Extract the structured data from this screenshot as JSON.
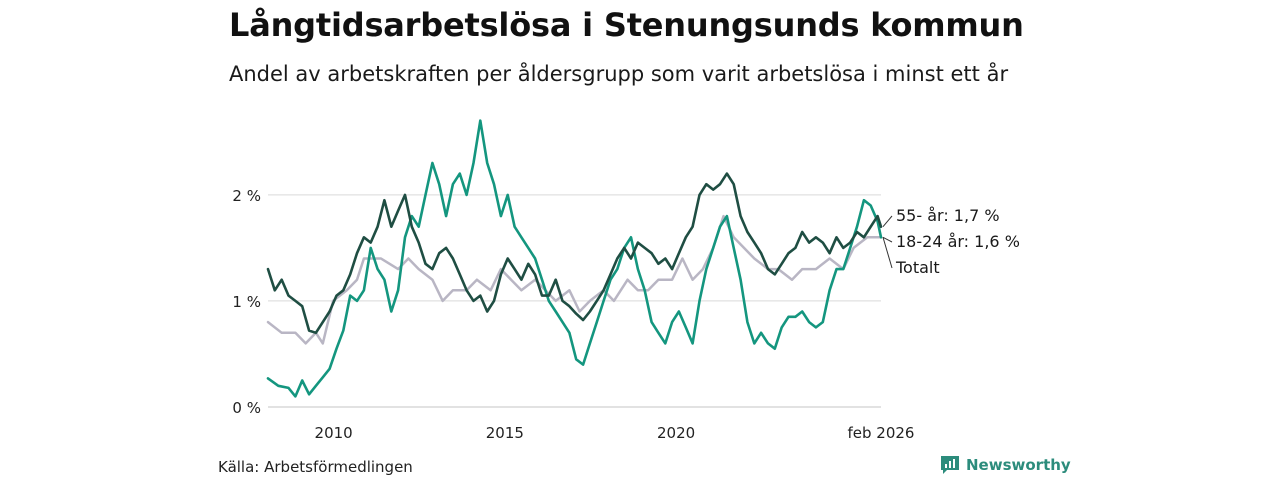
{
  "header": {
    "title": "Långtidsarbetslösa i Stenungsunds kommun",
    "subtitle": "Andel av arbetskraften per åldersgrupp som varit arbetslösa i minst ett år"
  },
  "footer": {
    "source": "Källa: Arbetsförmedlingen",
    "brand": "Newsworthy"
  },
  "colors": {
    "age_55": "#1f4e43",
    "age_18_24": "#14967f",
    "total": "#b9b6c4",
    "grid": "#d9d9d9",
    "brand": "#2c8c7c"
  },
  "chart_data": {
    "type": "line",
    "title": "Långtidsarbetslösa i Stenungsunds kommun",
    "subtitle": "Andel av arbetskraften per åldersgrupp som varit arbetslösa i minst ett år",
    "xlabel": "",
    "ylabel": "",
    "xlim": [
      2008.2,
      2026.1
    ],
    "ylim": [
      0,
      2.8
    ],
    "x_ticks": [
      {
        "value": 2010,
        "label": "2010"
      },
      {
        "value": 2015,
        "label": "2015"
      },
      {
        "value": 2020,
        "label": "2020"
      },
      {
        "value": 2026.1,
        "label": "feb 2026"
      }
    ],
    "y_ticks": [
      {
        "value": 0,
        "label": "0 %"
      },
      {
        "value": 1,
        "label": "1 %"
      },
      {
        "value": 2,
        "label": "2 %"
      }
    ],
    "grid": true,
    "series": [
      {
        "name": "Totalt",
        "key": "total",
        "end_label": "Totalt",
        "points": [
          [
            2008.2,
            0.8
          ],
          [
            2008.6,
            0.7
          ],
          [
            2009.0,
            0.7
          ],
          [
            2009.3,
            0.6
          ],
          [
            2009.6,
            0.7
          ],
          [
            2009.8,
            0.6
          ],
          [
            2010.1,
            1.0
          ],
          [
            2010.5,
            1.1
          ],
          [
            2010.8,
            1.2
          ],
          [
            2011.0,
            1.4
          ],
          [
            2011.5,
            1.4
          ],
          [
            2012.0,
            1.3
          ],
          [
            2012.3,
            1.4
          ],
          [
            2012.6,
            1.3
          ],
          [
            2013.0,
            1.2
          ],
          [
            2013.3,
            1.0
          ],
          [
            2013.6,
            1.1
          ],
          [
            2014.0,
            1.1
          ],
          [
            2014.3,
            1.2
          ],
          [
            2014.7,
            1.1
          ],
          [
            2015.0,
            1.3
          ],
          [
            2015.3,
            1.2
          ],
          [
            2015.6,
            1.1
          ],
          [
            2016.0,
            1.2
          ],
          [
            2016.3,
            1.1
          ],
          [
            2016.6,
            1.0
          ],
          [
            2017.0,
            1.1
          ],
          [
            2017.3,
            0.9
          ],
          [
            2017.6,
            1.0
          ],
          [
            2018.0,
            1.1
          ],
          [
            2018.3,
            1.0
          ],
          [
            2018.7,
            1.2
          ],
          [
            2019.0,
            1.1
          ],
          [
            2019.3,
            1.1
          ],
          [
            2019.6,
            1.2
          ],
          [
            2020.0,
            1.2
          ],
          [
            2020.3,
            1.4
          ],
          [
            2020.6,
            1.2
          ],
          [
            2020.9,
            1.3
          ],
          [
            2021.2,
            1.5
          ],
          [
            2021.5,
            1.8
          ],
          [
            2021.8,
            1.6
          ],
          [
            2022.1,
            1.5
          ],
          [
            2022.4,
            1.4
          ],
          [
            2022.8,
            1.3
          ],
          [
            2023.1,
            1.3
          ],
          [
            2023.5,
            1.2
          ],
          [
            2023.8,
            1.3
          ],
          [
            2024.2,
            1.3
          ],
          [
            2024.6,
            1.4
          ],
          [
            2025.0,
            1.3
          ],
          [
            2025.3,
            1.5
          ],
          [
            2025.7,
            1.6
          ],
          [
            2026.1,
            1.6
          ]
        ]
      },
      {
        "name": "18-24 år",
        "key": "age_18_24",
        "end_label": "18-24 år: 1,6 %",
        "points": [
          [
            2008.2,
            0.27
          ],
          [
            2008.5,
            0.2
          ],
          [
            2008.8,
            0.18
          ],
          [
            2009.0,
            0.1
          ],
          [
            2009.2,
            0.25
          ],
          [
            2009.4,
            0.12
          ],
          [
            2009.6,
            0.2
          ],
          [
            2009.8,
            0.28
          ],
          [
            2010.0,
            0.36
          ],
          [
            2010.2,
            0.55
          ],
          [
            2010.4,
            0.72
          ],
          [
            2010.6,
            1.05
          ],
          [
            2010.8,
            1.0
          ],
          [
            2011.0,
            1.1
          ],
          [
            2011.2,
            1.5
          ],
          [
            2011.4,
            1.3
          ],
          [
            2011.6,
            1.2
          ],
          [
            2011.8,
            0.9
          ],
          [
            2012.0,
            1.1
          ],
          [
            2012.2,
            1.6
          ],
          [
            2012.4,
            1.8
          ],
          [
            2012.6,
            1.7
          ],
          [
            2012.8,
            2.0
          ],
          [
            2013.0,
            2.3
          ],
          [
            2013.2,
            2.1
          ],
          [
            2013.4,
            1.8
          ],
          [
            2013.6,
            2.1
          ],
          [
            2013.8,
            2.2
          ],
          [
            2014.0,
            2.0
          ],
          [
            2014.2,
            2.3
          ],
          [
            2014.4,
            2.7
          ],
          [
            2014.6,
            2.3
          ],
          [
            2014.8,
            2.1
          ],
          [
            2015.0,
            1.8
          ],
          [
            2015.2,
            2.0
          ],
          [
            2015.4,
            1.7
          ],
          [
            2015.6,
            1.6
          ],
          [
            2015.8,
            1.5
          ],
          [
            2016.0,
            1.4
          ],
          [
            2016.2,
            1.2
          ],
          [
            2016.4,
            1.0
          ],
          [
            2016.6,
            0.9
          ],
          [
            2016.8,
            0.8
          ],
          [
            2017.0,
            0.7
          ],
          [
            2017.2,
            0.45
          ],
          [
            2017.4,
            0.4
          ],
          [
            2017.6,
            0.6
          ],
          [
            2017.8,
            0.8
          ],
          [
            2018.0,
            1.0
          ],
          [
            2018.2,
            1.2
          ],
          [
            2018.4,
            1.3
          ],
          [
            2018.6,
            1.5
          ],
          [
            2018.8,
            1.6
          ],
          [
            2019.0,
            1.3
          ],
          [
            2019.2,
            1.1
          ],
          [
            2019.4,
            0.8
          ],
          [
            2019.6,
            0.7
          ],
          [
            2019.8,
            0.6
          ],
          [
            2020.0,
            0.8
          ],
          [
            2020.2,
            0.9
          ],
          [
            2020.4,
            0.75
          ],
          [
            2020.6,
            0.6
          ],
          [
            2020.8,
            1.0
          ],
          [
            2021.0,
            1.3
          ],
          [
            2021.2,
            1.5
          ],
          [
            2021.4,
            1.7
          ],
          [
            2021.6,
            1.8
          ],
          [
            2021.8,
            1.5
          ],
          [
            2022.0,
            1.2
          ],
          [
            2022.2,
            0.8
          ],
          [
            2022.4,
            0.6
          ],
          [
            2022.6,
            0.7
          ],
          [
            2022.8,
            0.6
          ],
          [
            2023.0,
            0.55
          ],
          [
            2023.2,
            0.75
          ],
          [
            2023.4,
            0.85
          ],
          [
            2023.6,
            0.85
          ],
          [
            2023.8,
            0.9
          ],
          [
            2024.0,
            0.8
          ],
          [
            2024.2,
            0.75
          ],
          [
            2024.4,
            0.8
          ],
          [
            2024.6,
            1.1
          ],
          [
            2024.8,
            1.3
          ],
          [
            2025.0,
            1.3
          ],
          [
            2025.2,
            1.5
          ],
          [
            2025.4,
            1.7
          ],
          [
            2025.6,
            1.95
          ],
          [
            2025.8,
            1.9
          ],
          [
            2026.0,
            1.75
          ],
          [
            2026.1,
            1.6
          ]
        ]
      },
      {
        "name": "55- år",
        "key": "age_55",
        "end_label": "55- år: 1,7 %",
        "points": [
          [
            2008.2,
            1.3
          ],
          [
            2008.4,
            1.1
          ],
          [
            2008.6,
            1.2
          ],
          [
            2008.8,
            1.05
          ],
          [
            2009.0,
            1.0
          ],
          [
            2009.2,
            0.95
          ],
          [
            2009.4,
            0.72
          ],
          [
            2009.6,
            0.7
          ],
          [
            2009.8,
            0.8
          ],
          [
            2010.0,
            0.9
          ],
          [
            2010.2,
            1.05
          ],
          [
            2010.4,
            1.1
          ],
          [
            2010.6,
            1.25
          ],
          [
            2010.8,
            1.45
          ],
          [
            2011.0,
            1.6
          ],
          [
            2011.2,
            1.55
          ],
          [
            2011.4,
            1.7
          ],
          [
            2011.6,
            1.95
          ],
          [
            2011.8,
            1.7
          ],
          [
            2012.0,
            1.85
          ],
          [
            2012.2,
            2.0
          ],
          [
            2012.4,
            1.7
          ],
          [
            2012.6,
            1.55
          ],
          [
            2012.8,
            1.35
          ],
          [
            2013.0,
            1.3
          ],
          [
            2013.2,
            1.45
          ],
          [
            2013.4,
            1.5
          ],
          [
            2013.6,
            1.4
          ],
          [
            2013.8,
            1.25
          ],
          [
            2014.0,
            1.1
          ],
          [
            2014.2,
            1.0
          ],
          [
            2014.4,
            1.05
          ],
          [
            2014.6,
            0.9
          ],
          [
            2014.8,
            1.0
          ],
          [
            2015.0,
            1.25
          ],
          [
            2015.2,
            1.4
          ],
          [
            2015.4,
            1.3
          ],
          [
            2015.6,
            1.2
          ],
          [
            2015.8,
            1.35
          ],
          [
            2016.0,
            1.25
          ],
          [
            2016.2,
            1.05
          ],
          [
            2016.4,
            1.05
          ],
          [
            2016.6,
            1.2
          ],
          [
            2016.8,
            1.0
          ],
          [
            2017.0,
            0.95
          ],
          [
            2017.2,
            0.88
          ],
          [
            2017.4,
            0.82
          ],
          [
            2017.6,
            0.9
          ],
          [
            2017.8,
            1.0
          ],
          [
            2018.0,
            1.1
          ],
          [
            2018.2,
            1.25
          ],
          [
            2018.4,
            1.4
          ],
          [
            2018.6,
            1.5
          ],
          [
            2018.8,
            1.4
          ],
          [
            2019.0,
            1.55
          ],
          [
            2019.2,
            1.5
          ],
          [
            2019.4,
            1.45
          ],
          [
            2019.6,
            1.35
          ],
          [
            2019.8,
            1.4
          ],
          [
            2020.0,
            1.3
          ],
          [
            2020.2,
            1.45
          ],
          [
            2020.4,
            1.6
          ],
          [
            2020.6,
            1.7
          ],
          [
            2020.8,
            2.0
          ],
          [
            2021.0,
            2.1
          ],
          [
            2021.2,
            2.05
          ],
          [
            2021.4,
            2.1
          ],
          [
            2021.6,
            2.2
          ],
          [
            2021.8,
            2.1
          ],
          [
            2022.0,
            1.8
          ],
          [
            2022.2,
            1.65
          ],
          [
            2022.4,
            1.55
          ],
          [
            2022.6,
            1.45
          ],
          [
            2022.8,
            1.3
          ],
          [
            2023.0,
            1.25
          ],
          [
            2023.2,
            1.35
          ],
          [
            2023.4,
            1.45
          ],
          [
            2023.6,
            1.5
          ],
          [
            2023.8,
            1.65
          ],
          [
            2024.0,
            1.55
          ],
          [
            2024.2,
            1.6
          ],
          [
            2024.4,
            1.55
          ],
          [
            2024.6,
            1.45
          ],
          [
            2024.8,
            1.6
          ],
          [
            2025.0,
            1.5
          ],
          [
            2025.2,
            1.55
          ],
          [
            2025.4,
            1.65
          ],
          [
            2025.6,
            1.6
          ],
          [
            2025.8,
            1.7
          ],
          [
            2026.0,
            1.8
          ],
          [
            2026.1,
            1.7
          ]
        ]
      }
    ]
  }
}
